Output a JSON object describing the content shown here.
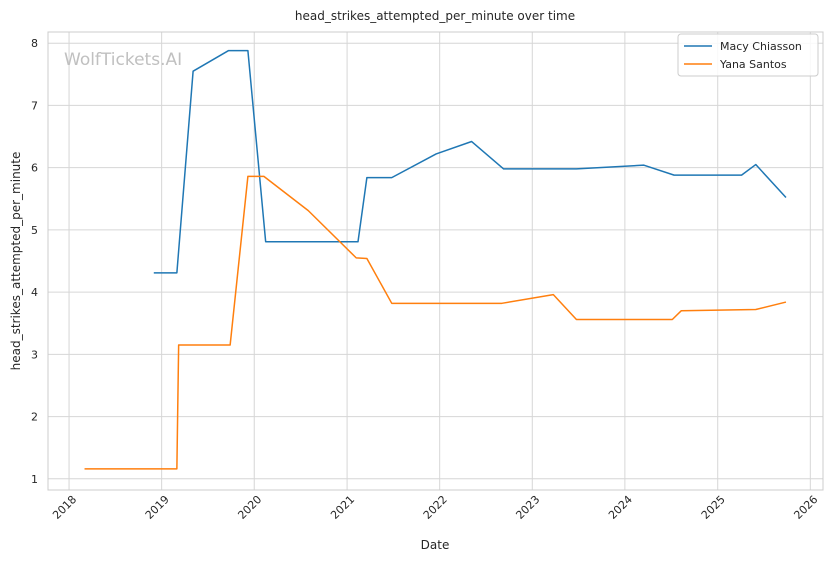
{
  "colors": {
    "series_0": "#1f77b4",
    "series_1": "#ff7f0e",
    "grid": "#d6d6d6",
    "axes_edge": "#cccccc"
  },
  "watermark": "WolfTickets.AI",
  "chart_data": {
    "type": "line",
    "title": "head_strikes_attempted_per_minute over time",
    "xlabel": "Date",
    "ylabel": "head_strikes_attempted_per_minute",
    "x_axis": "date",
    "xlim": [
      "2017-10-10",
      "2026-02-20"
    ],
    "ylim": [
      0.82,
      8.18
    ],
    "x_ticks": [
      "2018",
      "2019",
      "2020",
      "2021",
      "2022",
      "2023",
      "2024",
      "2025",
      "2026"
    ],
    "y_ticks": [
      1,
      2,
      3,
      4,
      5,
      6,
      7,
      8
    ],
    "grid": true,
    "legend": "top-right",
    "series": [
      {
        "name": "Macy Chiasson",
        "points": [
          [
            "2018-12-01",
            4.31
          ],
          [
            "2019-03-02",
            4.31
          ],
          [
            "2019-05-05",
            7.55
          ],
          [
            "2019-09-21",
            7.88
          ],
          [
            "2019-12-07",
            7.88
          ],
          [
            "2020-02-15",
            4.81
          ],
          [
            "2021-02-13",
            4.81
          ],
          [
            "2021-03-20",
            5.84
          ],
          [
            "2021-06-26",
            5.84
          ],
          [
            "2021-12-18",
            6.22
          ],
          [
            "2022-05-07",
            6.42
          ],
          [
            "2022-09-10",
            5.98
          ],
          [
            "2023-06-24",
            5.98
          ],
          [
            "2024-03-16",
            6.04
          ],
          [
            "2024-07-13",
            5.88
          ],
          [
            "2025-04-05",
            5.88
          ],
          [
            "2025-05-31",
            6.05
          ],
          [
            "2025-09-27",
            5.52
          ]
        ]
      },
      {
        "name": "Yana Santos",
        "points": [
          [
            "2018-03-03",
            1.16
          ],
          [
            "2019-03-02",
            1.16
          ],
          [
            "2019-03-09",
            3.15
          ],
          [
            "2019-09-28",
            3.15
          ],
          [
            "2019-12-07",
            5.86
          ],
          [
            "2020-02-08",
            5.86
          ],
          [
            "2020-08-01",
            5.31
          ],
          [
            "2021-02-06",
            4.55
          ],
          [
            "2021-03-20",
            4.54
          ],
          [
            "2021-06-26",
            3.82
          ],
          [
            "2022-09-03",
            3.82
          ],
          [
            "2023-03-25",
            3.96
          ],
          [
            "2023-06-24",
            3.56
          ],
          [
            "2024-07-06",
            3.56
          ],
          [
            "2024-08-10",
            3.7
          ],
          [
            "2025-05-31",
            3.72
          ],
          [
            "2025-09-27",
            3.84
          ]
        ]
      }
    ]
  }
}
